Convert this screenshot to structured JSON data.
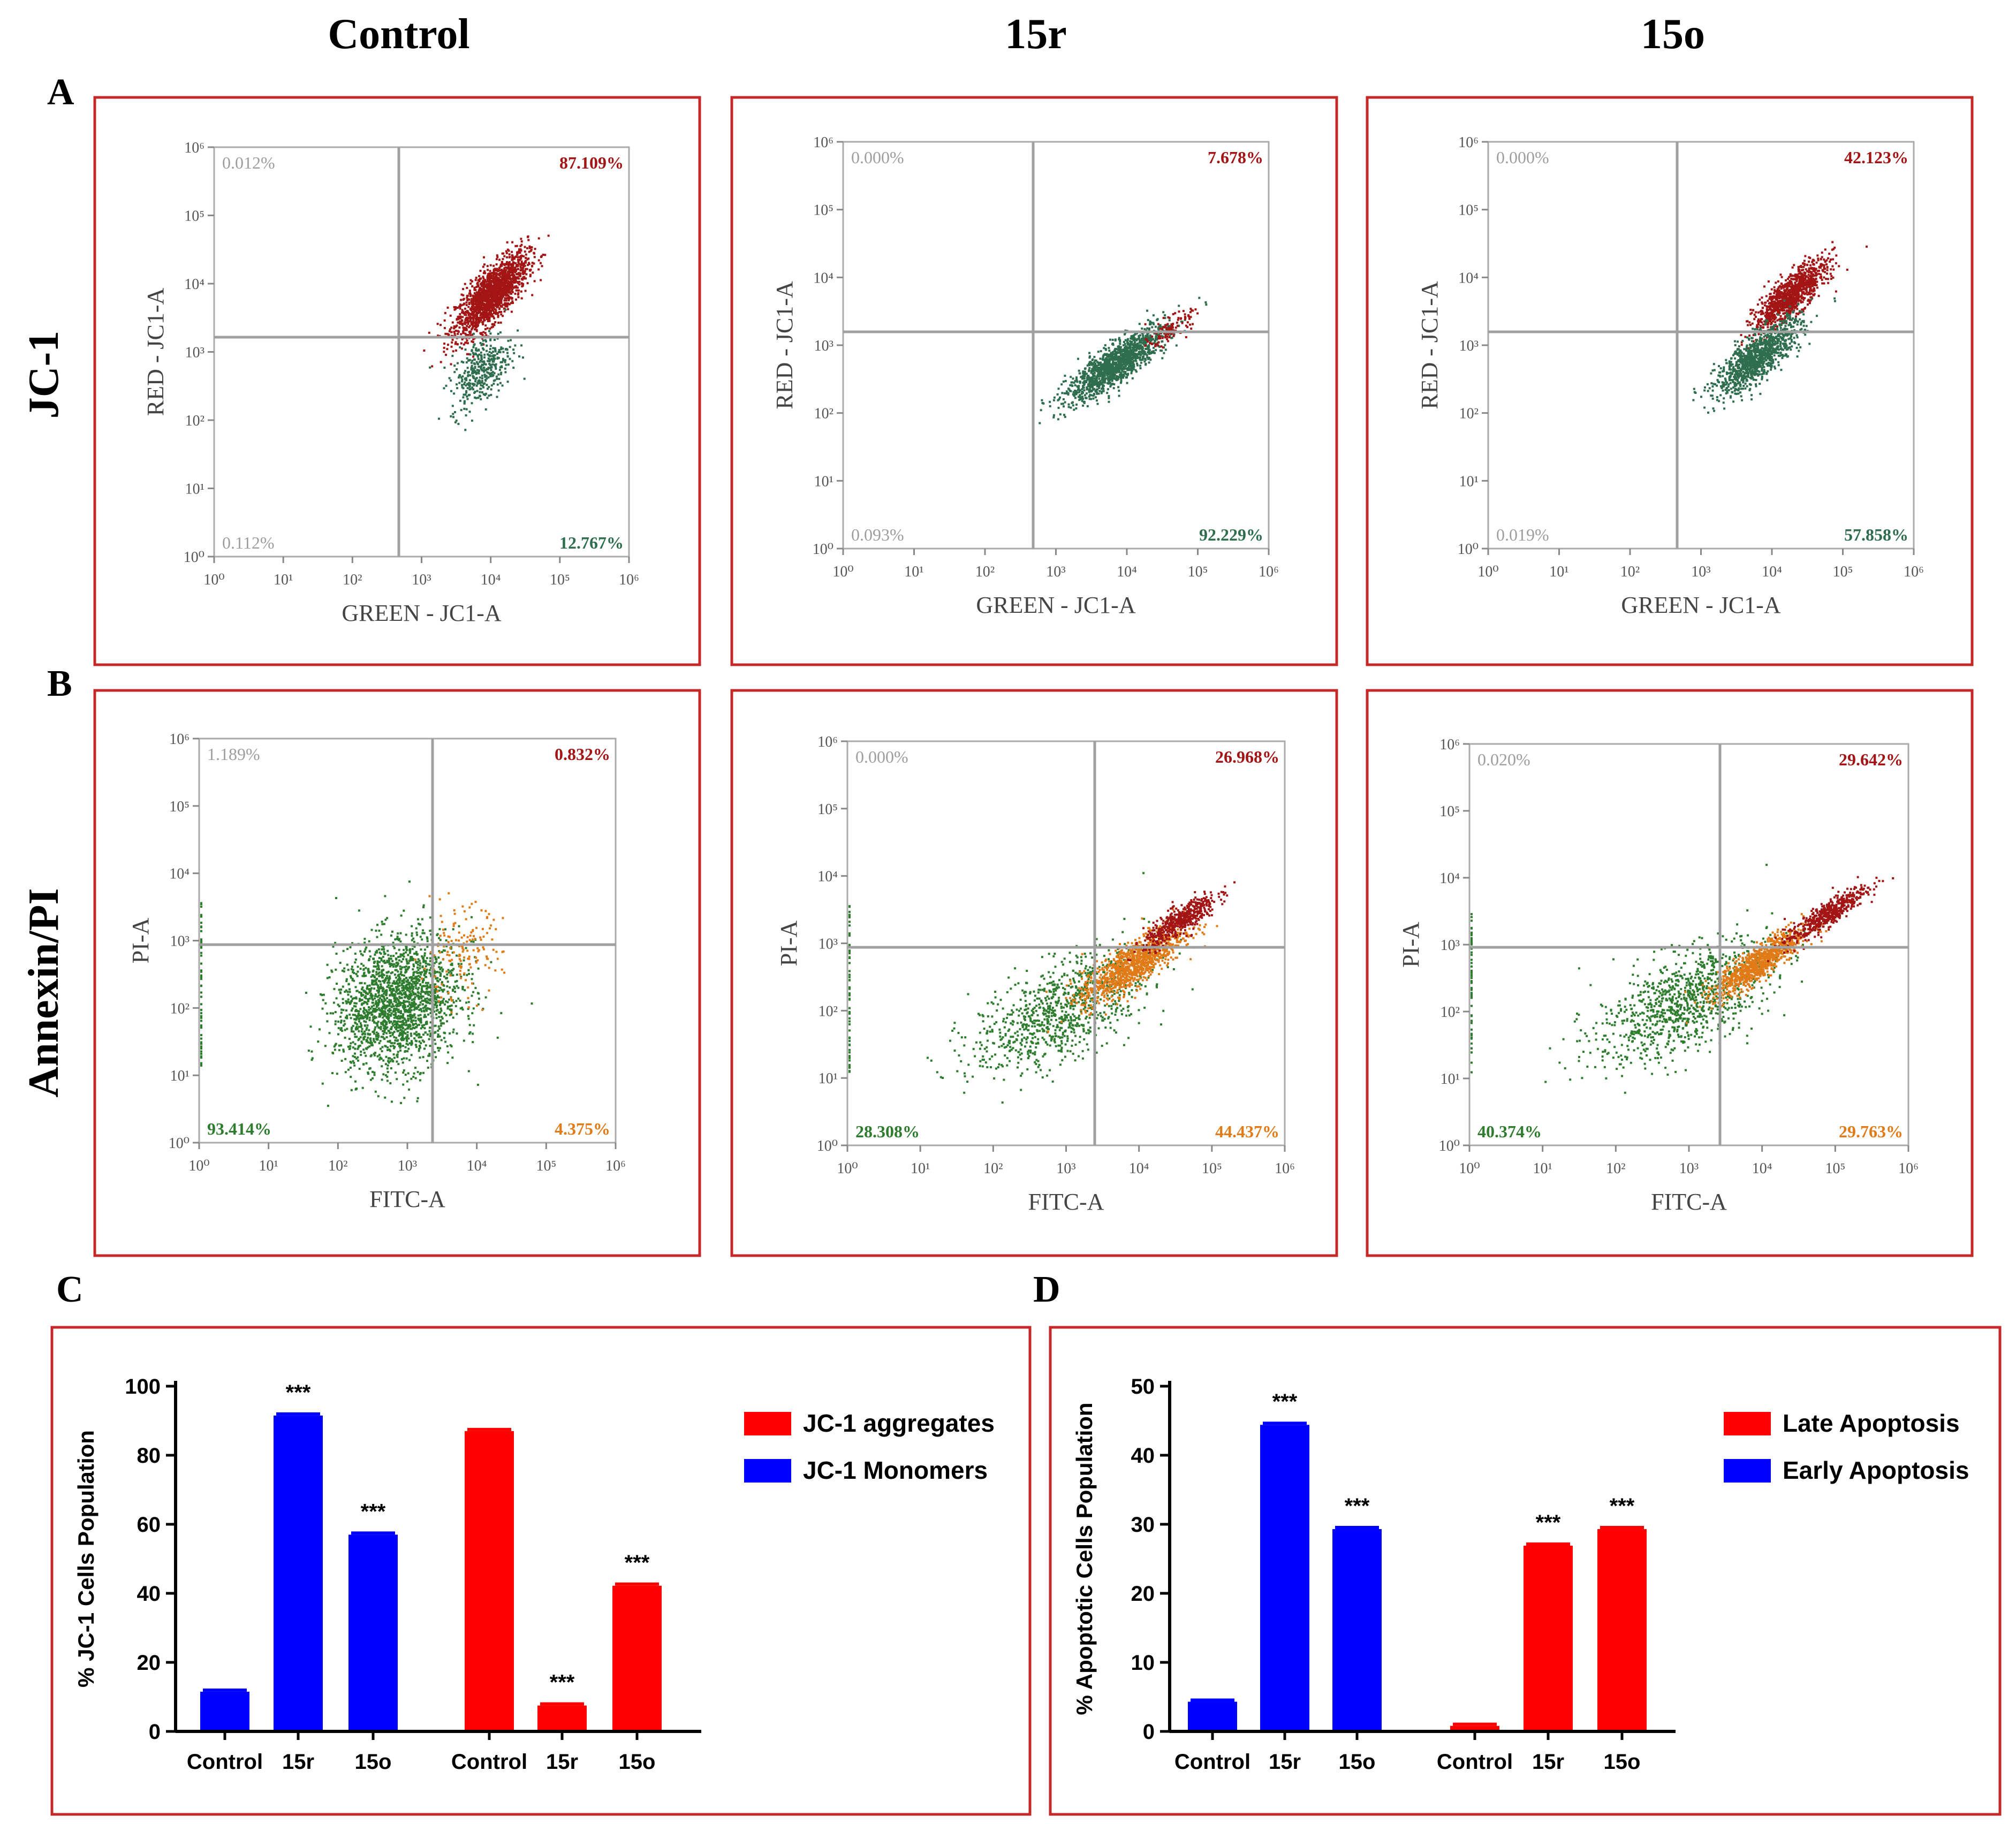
{
  "column_headers": [
    "Control",
    "15r",
    "15o"
  ],
  "panel_letters": {
    "A": "A",
    "B": "B",
    "C": "C",
    "D": "D"
  },
  "row_labels": {
    "jc1": "JC-1",
    "annexin": "Annexin/PI"
  },
  "colors": {
    "frame": "#c62828",
    "red_pop": "#a31515",
    "green_pop": "#2e6e4e",
    "dark_green": "#2e7d2e",
    "orange_pop": "#e07b18",
    "grey_text": "#9e9e9e",
    "bar_blue": "#0000ff",
    "bar_red": "#ff0000",
    "gate": "#a0a0a0"
  },
  "flow_axes": {
    "ticks": [
      "10⁰",
      "10¹",
      "10²",
      "10³",
      "10⁴",
      "10⁵",
      "10⁶"
    ],
    "jc1_x": "GREEN - JC1-A",
    "jc1_y": "RED - JC1-A",
    "ann_x": "FITC-A",
    "ann_y": "PI-A"
  },
  "jc1_plots": [
    {
      "name": "Control",
      "q_ul": "0.012%",
      "q_ur": "87.109%",
      "q_ll": "0.112%",
      "q_lr": "12.767%"
    },
    {
      "name": "15r",
      "q_ul": "0.000%",
      "q_ur": "7.678%",
      "q_ll": "0.093%",
      "q_lr": "92.229%"
    },
    {
      "name": "15o",
      "q_ul": "0.000%",
      "q_ur": "42.123%",
      "q_ll": "0.019%",
      "q_lr": "57.858%"
    }
  ],
  "annexin_plots": [
    {
      "name": "Control",
      "q_ul": "1.189%",
      "q_ur": "0.832%",
      "q_ll": "93.414%",
      "q_lr": "4.375%"
    },
    {
      "name": "15r",
      "q_ul": "0.000%",
      "q_ur": "26.968%",
      "q_ll": "28.308%",
      "q_lr": "44.437%"
    },
    {
      "name": "15o",
      "q_ul": "0.020%",
      "q_ur": "29.642%",
      "q_ll": "40.374%",
      "q_lr": "29.763%"
    }
  ],
  "chart_data": [
    {
      "type": "bar",
      "panel": "C",
      "ylabel": "% JC-1 Cells Population",
      "ylim": [
        0,
        100
      ],
      "yticks": [
        0,
        20,
        40,
        60,
        80,
        100
      ],
      "categories": [
        "Control",
        "15r",
        "15o",
        "Control",
        "15r",
        "15o"
      ],
      "series": [
        {
          "name": "JC-1 Monomers",
          "color": "#0000ff",
          "values": [
            11.5,
            91.5,
            57.0,
            null,
            null,
            null
          ]
        },
        {
          "name": "JC-1 aggregates",
          "color": "#ff0000",
          "values": [
            null,
            null,
            null,
            87.0,
            7.5,
            42.2
          ]
        }
      ],
      "annotations": [
        "",
        "***",
        "***",
        "",
        "***",
        "***"
      ],
      "legend": [
        "JC-1 aggregates",
        "JC-1 Monomers"
      ],
      "legend_position": "top-right"
    },
    {
      "type": "bar",
      "panel": "D",
      "ylabel": "% Apoptotic Cells Population",
      "ylim": [
        0,
        50
      ],
      "yticks": [
        0,
        10,
        20,
        30,
        40,
        50
      ],
      "categories": [
        "Control",
        "15r",
        "15o",
        "Control",
        "15r",
        "15o"
      ],
      "series": [
        {
          "name": "Early Apoptosis",
          "color": "#0000ff",
          "values": [
            4.3,
            44.4,
            29.3,
            null,
            null,
            null
          ]
        },
        {
          "name": "Late Apoptosis",
          "color": "#ff0000",
          "values": [
            null,
            null,
            null,
            0.8,
            26.9,
            29.3
          ]
        }
      ],
      "annotations": [
        "",
        "***",
        "***",
        "",
        "***",
        "***"
      ],
      "legend": [
        "Late Apoptosis",
        "Early Apoptosis"
      ],
      "legend_position": "top-right"
    }
  ]
}
